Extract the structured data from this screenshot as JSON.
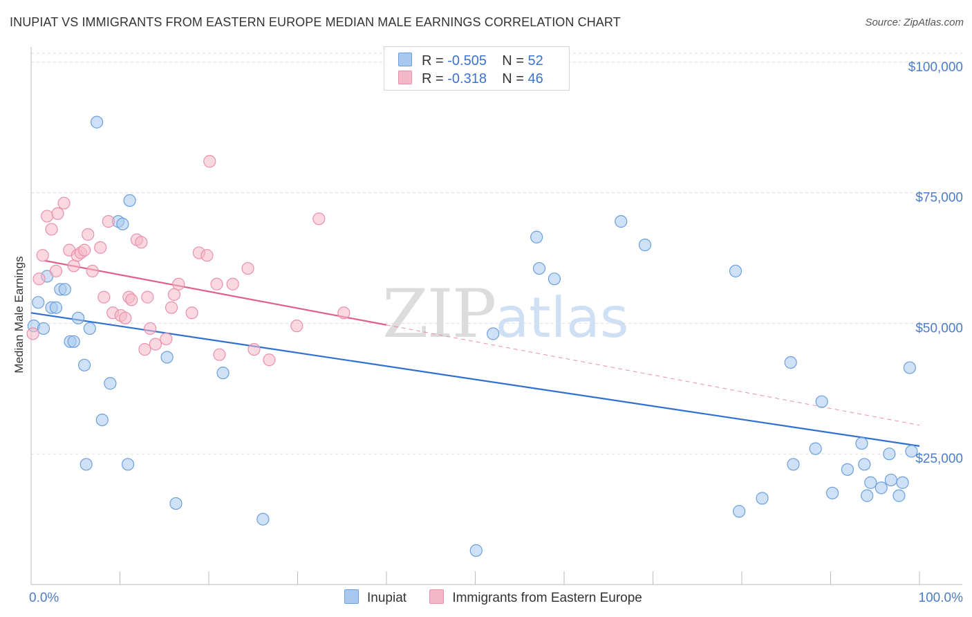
{
  "title": "INUPIAT VS IMMIGRANTS FROM EASTERN EUROPE MEDIAN MALE EARNINGS CORRELATION CHART",
  "source": "Source: ZipAtlas.com",
  "watermark": {
    "zip": "ZIP",
    "atlas": "atlas"
  },
  "legend": {
    "rows": [
      {
        "r_label": "R = ",
        "r_value": "-0.505",
        "n_label": "N = ",
        "n_value": "52",
        "color": "#a8c8f0"
      },
      {
        "r_label": "R = ",
        "r_value": "-0.318",
        "n_label": "N = ",
        "n_value": "46",
        "color": "#f5b8c8"
      }
    ]
  },
  "bottom_legend": [
    {
      "label": "Inupiat",
      "color": "#a8c8f0"
    },
    {
      "label": "Immigrants from Eastern Europe",
      "color": "#f5b8c8"
    }
  ],
  "chart_data": {
    "type": "scatter",
    "title": "INUPIAT VS IMMIGRANTS FROM EASTERN EUROPE MEDIAN MALE EARNINGS CORRELATION CHART",
    "xlabel": "",
    "ylabel": "Median Male Earnings",
    "xlim": [
      0,
      100
    ],
    "ylim": [
      0,
      105000
    ],
    "x_tick_labels": [
      "0.0%",
      "100.0%"
    ],
    "y_ticks": [
      25000,
      50000,
      75000,
      100000
    ],
    "y_tick_labels": [
      "$25,000",
      "$50,000",
      "$75,000",
      "$100,000"
    ],
    "series": [
      {
        "name": "Inupiat",
        "color": "#a8c8f0",
        "stroke": "#6a9fdc",
        "line_color": "#2f6fd0",
        "trend": {
          "x0": 0,
          "y0": 52000,
          "x1": 100,
          "y1": 26500,
          "dashed_from": null
        },
        "points": [
          [
            0.3,
            49500
          ],
          [
            0.8,
            54000
          ],
          [
            1.4,
            49000
          ],
          [
            1.8,
            59000
          ],
          [
            2.3,
            53000
          ],
          [
            2.8,
            53000
          ],
          [
            3.3,
            56500
          ],
          [
            3.8,
            56500
          ],
          [
            4.4,
            46500
          ],
          [
            4.8,
            46500
          ],
          [
            5.3,
            51000
          ],
          [
            6.0,
            42000
          ],
          [
            6.2,
            23000
          ],
          [
            6.6,
            49000
          ],
          [
            7.4,
            88500
          ],
          [
            8.0,
            31500
          ],
          [
            8.9,
            38500
          ],
          [
            9.8,
            69500
          ],
          [
            10.3,
            69000
          ],
          [
            10.9,
            23000
          ],
          [
            11.1,
            73500
          ],
          [
            15.3,
            43500
          ],
          [
            16.3,
            15500
          ],
          [
            21.6,
            40500
          ],
          [
            26.1,
            12500
          ],
          [
            50.1,
            6500
          ],
          [
            52.0,
            48000
          ],
          [
            56.9,
            66500
          ],
          [
            57.2,
            60500
          ],
          [
            58.9,
            58500
          ],
          [
            66.4,
            69500
          ],
          [
            69.1,
            65000
          ],
          [
            79.3,
            60000
          ],
          [
            79.7,
            14000
          ],
          [
            82.3,
            16500
          ],
          [
            85.5,
            42500
          ],
          [
            85.8,
            23000
          ],
          [
            88.3,
            26000
          ],
          [
            89.0,
            35000
          ],
          [
            90.2,
            17500
          ],
          [
            91.9,
            22000
          ],
          [
            93.5,
            27000
          ],
          [
            93.8,
            23000
          ],
          [
            94.1,
            17000
          ],
          [
            94.5,
            19500
          ],
          [
            95.7,
            18500
          ],
          [
            96.6,
            25000
          ],
          [
            96.8,
            20000
          ],
          [
            97.7,
            17000
          ],
          [
            98.1,
            19500
          ],
          [
            99.1,
            25500
          ],
          [
            98.9,
            41500
          ]
        ]
      },
      {
        "name": "Immigrants from Eastern Europe",
        "color": "#f5b8c8",
        "stroke": "#e890aa",
        "line_color": "#e0608a",
        "trend": {
          "x0": 1.5,
          "y0": 62000,
          "x1": 100,
          "y1": 30500,
          "dashed_from": 40
        },
        "points": [
          [
            0.2,
            48000
          ],
          [
            0.9,
            58500
          ],
          [
            1.3,
            63000
          ],
          [
            1.8,
            70500
          ],
          [
            2.3,
            68000
          ],
          [
            2.8,
            60000
          ],
          [
            3.0,
            71000
          ],
          [
            3.7,
            73000
          ],
          [
            4.3,
            64000
          ],
          [
            4.8,
            61000
          ],
          [
            5.2,
            63000
          ],
          [
            5.6,
            63500
          ],
          [
            6.0,
            64000
          ],
          [
            6.4,
            67000
          ],
          [
            6.9,
            60000
          ],
          [
            7.8,
            64500
          ],
          [
            8.2,
            55000
          ],
          [
            8.7,
            69500
          ],
          [
            9.2,
            52000
          ],
          [
            10.1,
            51500
          ],
          [
            10.6,
            51000
          ],
          [
            11.0,
            55000
          ],
          [
            11.3,
            54500
          ],
          [
            11.9,
            66000
          ],
          [
            12.4,
            65500
          ],
          [
            12.8,
            45000
          ],
          [
            13.1,
            55000
          ],
          [
            13.4,
            49000
          ],
          [
            14.0,
            46000
          ],
          [
            15.2,
            47000
          ],
          [
            15.8,
            53000
          ],
          [
            16.1,
            55500
          ],
          [
            16.6,
            57500
          ],
          [
            18.1,
            52000
          ],
          [
            18.9,
            63500
          ],
          [
            19.8,
            63000
          ],
          [
            20.1,
            81000
          ],
          [
            20.9,
            57500
          ],
          [
            21.2,
            44000
          ],
          [
            22.7,
            57500
          ],
          [
            24.4,
            60500
          ],
          [
            25.1,
            45000
          ],
          [
            26.8,
            43000
          ],
          [
            29.9,
            49500
          ],
          [
            32.4,
            70000
          ],
          [
            35.2,
            52000
          ]
        ]
      }
    ]
  }
}
